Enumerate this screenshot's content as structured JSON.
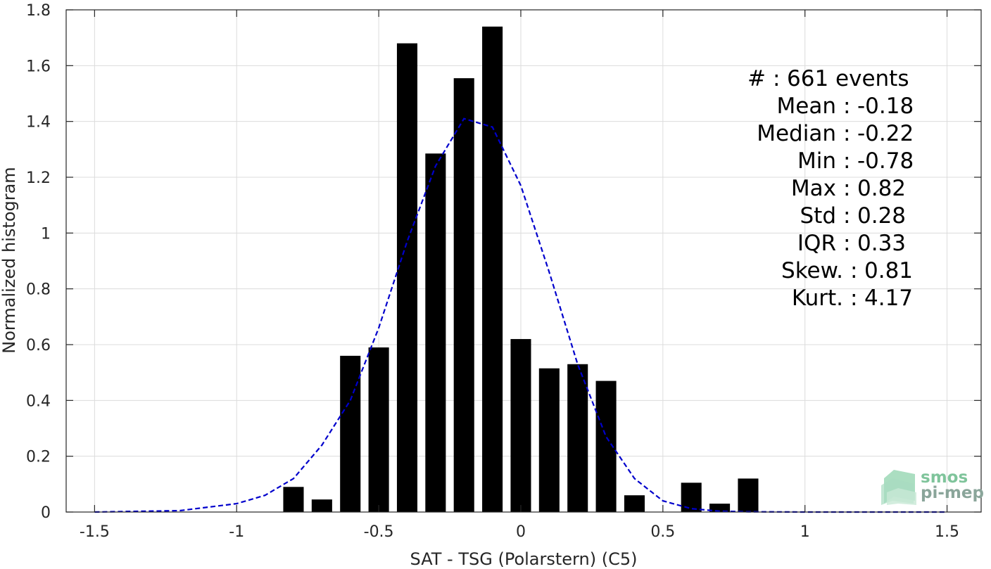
{
  "chart_data": {
    "type": "bar",
    "xlabel": "SAT - TSG (Polarstern) (C5)",
    "ylabel": "Normalized histogram",
    "xlim": [
      -1.6,
      1.62
    ],
    "ylim": [
      0,
      1.8
    ],
    "grid": true,
    "xticks": [
      -1.5,
      -1,
      -0.5,
      0,
      0.5,
      1,
      1.5
    ],
    "xtick_labels": [
      "-1.5",
      "-1",
      "-0.5",
      "0",
      "0.5",
      "1",
      "1.5"
    ],
    "yticks": [
      0,
      0.2,
      0.4,
      0.6,
      0.8,
      1,
      1.2,
      1.4,
      1.6,
      1.8
    ],
    "ytick_labels": [
      "0",
      "0.2",
      "0.4",
      "0.6",
      "0.8",
      "1",
      "1.2",
      "1.4",
      "1.6",
      "1.8"
    ],
    "bar_width": 0.072,
    "colors": {
      "bars": "#000000",
      "fit": "#0000cc",
      "grid": "#dcdcdc",
      "axis": "#262626"
    },
    "bins": [
      {
        "x": -0.8,
        "value": 0.09
      },
      {
        "x": -0.7,
        "value": 0.045
      },
      {
        "x": -0.6,
        "value": 0.56
      },
      {
        "x": -0.5,
        "value": 0.59
      },
      {
        "x": -0.4,
        "value": 1.68
      },
      {
        "x": -0.3,
        "value": 1.285
      },
      {
        "x": -0.2,
        "value": 1.555
      },
      {
        "x": -0.1,
        "value": 1.74
      },
      {
        "x": 0.0,
        "value": 0.62
      },
      {
        "x": 0.1,
        "value": 0.515
      },
      {
        "x": 0.2,
        "value": 0.53
      },
      {
        "x": 0.3,
        "value": 0.47
      },
      {
        "x": 0.4,
        "value": 0.06
      },
      {
        "x": 0.6,
        "value": 0.105
      },
      {
        "x": 0.7,
        "value": 0.03
      },
      {
        "x": 0.8,
        "value": 0.12
      }
    ],
    "fit_curve": {
      "style": "dashed",
      "x": [
        -1.5,
        -1.2,
        -1.0,
        -0.9,
        -0.8,
        -0.7,
        -0.6,
        -0.5,
        -0.4,
        -0.3,
        -0.2,
        -0.1,
        0.0,
        0.1,
        0.2,
        0.3,
        0.4,
        0.5,
        0.6,
        0.7,
        0.8,
        1.0,
        1.2,
        1.5
      ],
      "y": [
        0.0,
        0.005,
        0.03,
        0.06,
        0.12,
        0.24,
        0.4,
        0.66,
        0.97,
        1.24,
        1.41,
        1.38,
        1.17,
        0.86,
        0.53,
        0.27,
        0.12,
        0.04,
        0.012,
        0.003,
        0.001,
        0.0,
        0.0,
        0.0
      ]
    },
    "annotations": [
      {
        "label": "#",
        "sep": ":",
        "value": "661 events"
      },
      {
        "label": "Mean",
        "sep": ":",
        "value": "-0.18"
      },
      {
        "label": "Median",
        "sep": ":",
        "value": "-0.22"
      },
      {
        "label": "Min",
        "sep": ":",
        "value": "-0.78"
      },
      {
        "label": "Max",
        "sep": ":",
        "value": "0.82"
      },
      {
        "label": "Std",
        "sep": ":",
        "value": "0.28"
      },
      {
        "label": "IQR",
        "sep": ":",
        "value": "0.33"
      },
      {
        "label": "Skew.",
        "sep": ":",
        "value": "0.81"
      },
      {
        "label": "Kurt.",
        "sep": ":",
        "value": "4.17"
      }
    ]
  },
  "logo": {
    "line1": "smos",
    "line2": "pi-mep",
    "color1": "#7fc49b",
    "color2": "#8aa59a"
  }
}
